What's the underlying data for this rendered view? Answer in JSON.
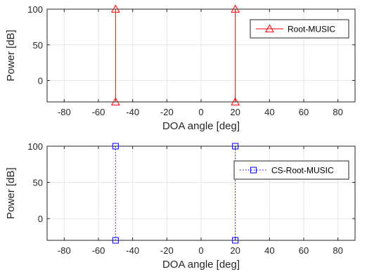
{
  "figure": {
    "background": "#ffffff"
  },
  "chart_data": [
    {
      "type": "line",
      "title": "",
      "xlabel": "DOA angle [deg]",
      "ylabel": "Power [dB]",
      "xlim": [
        -90,
        90
      ],
      "ylim": [
        -30,
        100
      ],
      "xticks": [
        -80,
        -60,
        -40,
        -20,
        0,
        20,
        40,
        60,
        80
      ],
      "yticks": [
        0,
        50,
        100
      ],
      "grid": true,
      "legend_position": "top-right",
      "series": [
        {
          "name": "Root-MUSIC",
          "color": "#ff0000",
          "line_style": "solid",
          "marker": "triangle",
          "segments": [
            {
              "x": [
                -50,
                -50
              ],
              "y": [
                -30,
                100
              ]
            },
            {
              "x": [
                20,
                20
              ],
              "y": [
                -30,
                100
              ]
            }
          ]
        }
      ]
    },
    {
      "type": "line",
      "title": "",
      "xlabel": "DOA angle [deg]",
      "ylabel": "Power [dB]",
      "xlim": [
        -90,
        90
      ],
      "ylim": [
        -30,
        100
      ],
      "xticks": [
        -80,
        -60,
        -40,
        -20,
        0,
        20,
        40,
        60,
        80
      ],
      "yticks": [
        0,
        50,
        100
      ],
      "grid": true,
      "legend_position": "top-right",
      "series": [
        {
          "name": "CS-Root-MUSIC",
          "color": "#0000ff",
          "line_style": "dotted",
          "marker": "square",
          "segments": [
            {
              "x": [
                -50,
                -50
              ],
              "y": [
                -30,
                100
              ]
            },
            {
              "x": [
                20,
                20
              ],
              "y": [
                -30,
                100
              ]
            }
          ]
        }
      ]
    }
  ]
}
